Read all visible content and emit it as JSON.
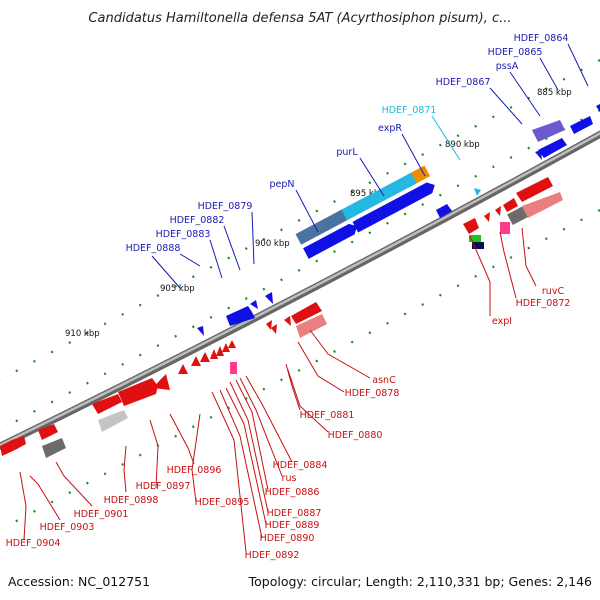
{
  "title": "Candidatus Hamiltonella defensa 5AT (Acyrthosiphon pisum), c...",
  "footer": {
    "accession": "Accession: NC_012751",
    "topology": "Topology: circular; Length: 2,110,331 bp; Genes: 2,146"
  },
  "colors": {
    "forward_label": "#1a1ab5",
    "reverse_label": "#c81010",
    "highlight_label": "#20b8e0",
    "backbone": "#777777",
    "tick": "#1a8a1a"
  },
  "scale": [
    "885 kbp",
    "890 kbp",
    "895 kbp",
    "900 kbp",
    "905 kbp",
    "910 kbp"
  ],
  "forward_labels": [
    "HDEF_0864",
    "HDEF_0865",
    "pssA",
    "HDEF_0867",
    "HDEF_0871",
    "expR",
    "purL",
    "pepN",
    "HDEF_0879",
    "HDEF_0882",
    "HDEF_0883",
    "HDEF_0888"
  ],
  "reverse_labels": [
    "ruvC",
    "HDEF_0872",
    "expI",
    "asnC",
    "HDEF_0878",
    "HDEF_0881",
    "HDEF_0880",
    "HDEF_0884",
    "rus",
    "HDEF_0886",
    "HDEF_0887",
    "HDEF_0889",
    "HDEF_0890",
    "HDEF_0892",
    "HDEF_0895",
    "HDEF_0896",
    "HDEF_0897",
    "HDEF_0898",
    "HDEF_0901",
    "HDEF_0903",
    "HDEF_0904"
  ]
}
